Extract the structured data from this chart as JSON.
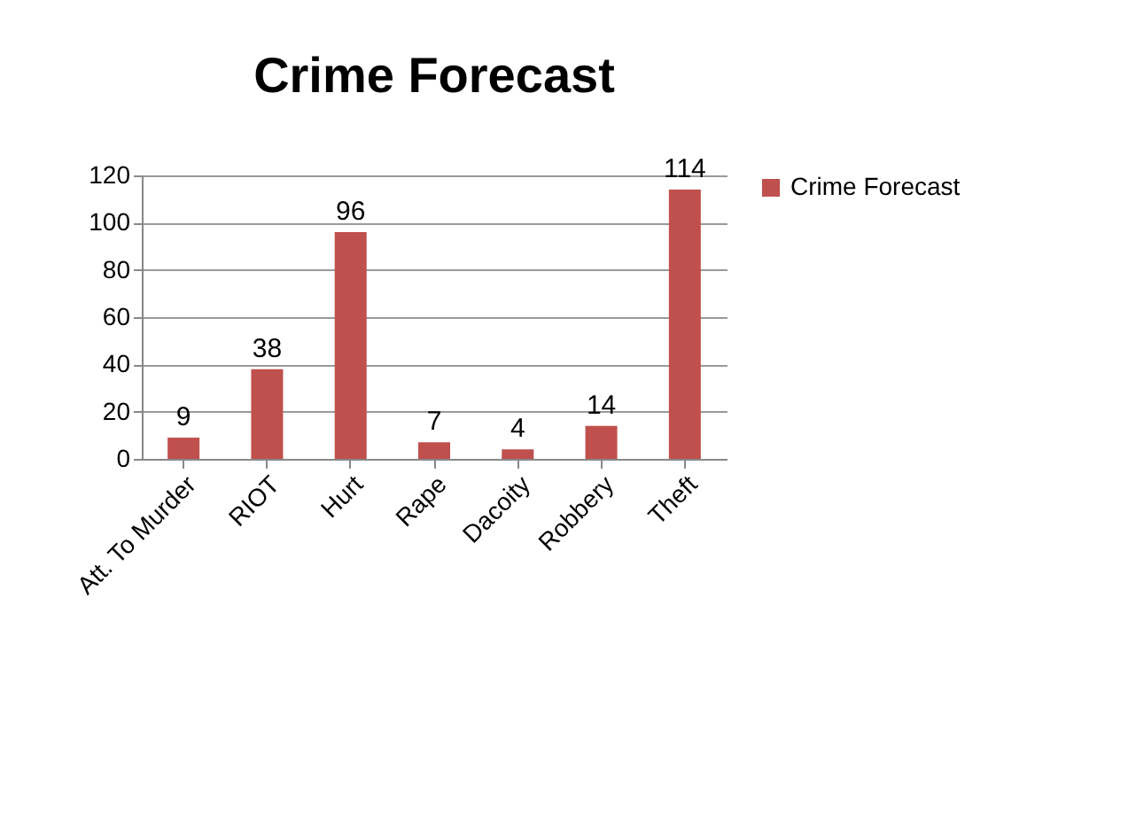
{
  "chart_data": {
    "type": "bar",
    "title": "Crime Forecast",
    "categories": [
      "Att. To Murder",
      "RIOT",
      "Hurt",
      "Rape",
      "Dacoity",
      "Robbery",
      "Theft"
    ],
    "series": [
      {
        "name": "Crime Forecast",
        "color": "#c0504d",
        "values": [
          9,
          38,
          96,
          7,
          4,
          14,
          114
        ]
      }
    ],
    "ylim": [
      0,
      120
    ],
    "yticks": [
      0,
      20,
      40,
      60,
      80,
      100,
      120
    ],
    "grid": "y",
    "legend": "right",
    "data_labels": true
  }
}
